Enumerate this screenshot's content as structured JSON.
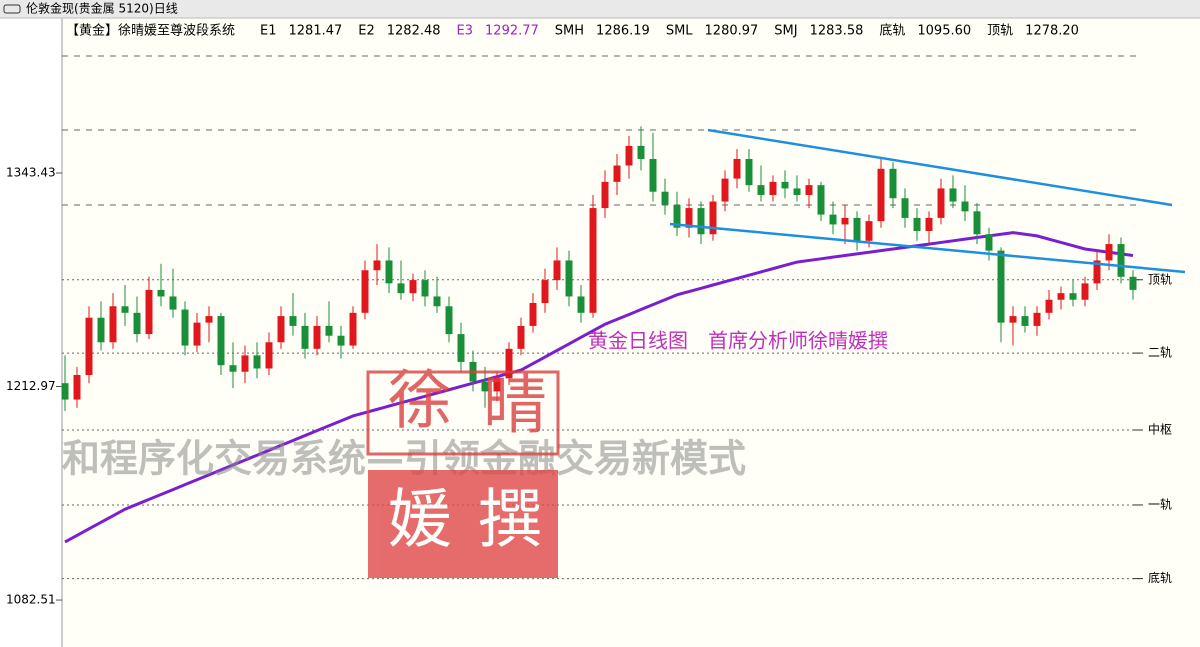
{
  "chart_data": {
    "type": "candlestick",
    "window_title": "伦敦金现(贵金属 5120)日线",
    "system_name": "【黄金】徐晴媛至尊波段系统",
    "indicators": [
      {
        "name": "E1",
        "value": 1281.47
      },
      {
        "name": "E2",
        "value": 1282.48
      },
      {
        "name": "E3",
        "value": 1292.77,
        "color": "#a020c0"
      },
      {
        "name": "SMH",
        "value": 1286.19
      },
      {
        "name": "SML",
        "value": 1280.97
      },
      {
        "name": "SMJ",
        "value": 1283.58
      },
      {
        "name": "底轨",
        "value": 1095.6,
        "label": "1095.60"
      },
      {
        "name": "顶轨",
        "value": 1278.2,
        "label": "1278.20"
      }
    ],
    "ylim": [
      1053.82,
      1438.13
    ],
    "yticks": [
      1082.51,
      1212.97,
      1343.43
    ],
    "levels": [
      {
        "value": 1414.9
      },
      {
        "value": 1369.7
      },
      {
        "value": 1323.9
      },
      {
        "value": 1278.2,
        "label": "顶轨"
      },
      {
        "value": 1233.4,
        "label": "二轨"
      },
      {
        "value": 1186.4,
        "label": "中枢"
      },
      {
        "value": 1140.6,
        "label": "一轨"
      },
      {
        "value": 1095.6,
        "label": "底轨"
      }
    ],
    "up_color": "#e0181e",
    "down_color": "#1a8f3a",
    "series": [
      {
        "values": [
          [
            1215,
            1232,
            1198,
            1205
          ],
          [
            1205,
            1225,
            1200,
            1220
          ],
          [
            1220,
            1262,
            1215,
            1255
          ],
          [
            1255,
            1265,
            1235,
            1240
          ],
          [
            1240,
            1270,
            1236,
            1262
          ],
          [
            1262,
            1275,
            1250,
            1258
          ],
          [
            1258,
            1268,
            1240,
            1245
          ],
          [
            1245,
            1280,
            1242,
            1272
          ],
          [
            1272,
            1288,
            1262,
            1268
          ],
          [
            1268,
            1285,
            1255,
            1260
          ],
          [
            1260,
            1265,
            1232,
            1238
          ],
          [
            1238,
            1258,
            1234,
            1252
          ],
          [
            1252,
            1262,
            1240,
            1256
          ],
          [
            1256,
            1258,
            1220,
            1226
          ],
          [
            1226,
            1240,
            1212,
            1222
          ],
          [
            1222,
            1238,
            1215,
            1232
          ],
          [
            1232,
            1240,
            1218,
            1224
          ],
          [
            1224,
            1246,
            1220,
            1240
          ],
          [
            1240,
            1262,
            1236,
            1256
          ],
          [
            1256,
            1270,
            1244,
            1250
          ],
          [
            1250,
            1258,
            1230,
            1236
          ],
          [
            1236,
            1256,
            1232,
            1250
          ],
          [
            1250,
            1265,
            1240,
            1244
          ],
          [
            1244,
            1250,
            1230,
            1238
          ],
          [
            1238,
            1262,
            1236,
            1258
          ],
          [
            1258,
            1290,
            1254,
            1284
          ],
          [
            1284,
            1300,
            1275,
            1290
          ],
          [
            1290,
            1298,
            1270,
            1276
          ],
          [
            1276,
            1290,
            1266,
            1270
          ],
          [
            1270,
            1282,
            1265,
            1278
          ],
          [
            1278,
            1284,
            1262,
            1268
          ],
          [
            1268,
            1280,
            1258,
            1262
          ],
          [
            1262,
            1268,
            1240,
            1245
          ],
          [
            1245,
            1252,
            1222,
            1228
          ],
          [
            1228,
            1235,
            1210,
            1216
          ],
          [
            1216,
            1225,
            1200,
            1210
          ],
          [
            1210,
            1222,
            1204,
            1218
          ],
          [
            1218,
            1240,
            1214,
            1236
          ],
          [
            1236,
            1255,
            1232,
            1250
          ],
          [
            1250,
            1270,
            1246,
            1264
          ],
          [
            1264,
            1285,
            1258,
            1278
          ],
          [
            1278,
            1298,
            1272,
            1290
          ],
          [
            1290,
            1296,
            1262,
            1268
          ],
          [
            1268,
            1275,
            1252,
            1258
          ],
          [
            1258,
            1330,
            1255,
            1322
          ],
          [
            1322,
            1345,
            1316,
            1338
          ],
          [
            1338,
            1355,
            1330,
            1348
          ],
          [
            1348,
            1366,
            1340,
            1360
          ],
          [
            1360,
            1372,
            1345,
            1352
          ],
          [
            1352,
            1368,
            1326,
            1332
          ],
          [
            1332,
            1340,
            1318,
            1324
          ],
          [
            1324,
            1332,
            1305,
            1310
          ],
          [
            1310,
            1328,
            1304,
            1322
          ],
          [
            1322,
            1326,
            1300,
            1306
          ],
          [
            1306,
            1330,
            1302,
            1326
          ],
          [
            1326,
            1345,
            1320,
            1340
          ],
          [
            1340,
            1358,
            1334,
            1352
          ],
          [
            1352,
            1358,
            1332,
            1336
          ],
          [
            1336,
            1348,
            1326,
            1330
          ],
          [
            1330,
            1342,
            1326,
            1338
          ],
          [
            1338,
            1345,
            1328,
            1334
          ],
          [
            1334,
            1342,
            1326,
            1330
          ],
          [
            1330,
            1340,
            1322,
            1336
          ],
          [
            1336,
            1338,
            1314,
            1318
          ],
          [
            1318,
            1326,
            1306,
            1312
          ],
          [
            1312,
            1324,
            1300,
            1316
          ],
          [
            1316,
            1320,
            1296,
            1302
          ],
          [
            1302,
            1318,
            1298,
            1314
          ],
          [
            1314,
            1352,
            1310,
            1346
          ],
          [
            1346,
            1350,
            1322,
            1328
          ],
          [
            1328,
            1334,
            1310,
            1316
          ],
          [
            1316,
            1322,
            1302,
            1308
          ],
          [
            1308,
            1320,
            1300,
            1316
          ],
          [
            1316,
            1340,
            1312,
            1334
          ],
          [
            1334,
            1342,
            1322,
            1326
          ],
          [
            1326,
            1336,
            1314,
            1320
          ],
          [
            1320,
            1325,
            1300,
            1306
          ],
          [
            1306,
            1310,
            1290,
            1296
          ],
          [
            1296,
            1298,
            1240,
            1252
          ],
          [
            1252,
            1262,
            1238,
            1256
          ],
          [
            1256,
            1262,
            1246,
            1250
          ],
          [
            1250,
            1262,
            1244,
            1258
          ],
          [
            1258,
            1272,
            1254,
            1266
          ],
          [
            1266,
            1274,
            1260,
            1270
          ],
          [
            1270,
            1278,
            1262,
            1266
          ],
          [
            1266,
            1280,
            1262,
            1276
          ],
          [
            1276,
            1296,
            1272,
            1290
          ],
          [
            1290,
            1306,
            1284,
            1300
          ],
          [
            1300,
            1304,
            1276,
            1280
          ],
          [
            1280,
            1284,
            1266,
            1272
          ]
        ]
      }
    ],
    "overlay_lines": [
      {
        "color": "#7a1fd0",
        "values": [
          1118,
          1122,
          1126,
          1130,
          1134,
          1138,
          1141,
          1144,
          1147,
          1150,
          1153,
          1156,
          1159,
          1162,
          1165,
          1168,
          1171,
          1174,
          1177,
          1180,
          1183,
          1186,
          1189,
          1192,
          1195,
          1197,
          1199,
          1201,
          1203,
          1205,
          1207,
          1209,
          1211,
          1213,
          1215,
          1217,
          1219,
          1221,
          1223,
          1227,
          1231,
          1235,
          1239,
          1243,
          1247,
          1251,
          1254,
          1257,
          1260,
          1263,
          1266,
          1269,
          1271,
          1273,
          1275,
          1277,
          1279,
          1281,
          1283,
          1285,
          1287,
          1289,
          1290,
          1291,
          1292,
          1293,
          1294,
          1295,
          1296,
          1297,
          1298,
          1299,
          1300,
          1301,
          1302,
          1303,
          1304,
          1305,
          1306,
          1307,
          1306,
          1305,
          1303,
          1301,
          1299,
          1297,
          1296,
          1295,
          1294,
          1293
        ]
      }
    ],
    "annotation": "黄金日线图　首席分析师徐晴媛撰",
    "watermark": "和程序化交易系统—引领金融交易新模式",
    "stamp": [
      "徐",
      "晴",
      "媛",
      "撰"
    ]
  }
}
